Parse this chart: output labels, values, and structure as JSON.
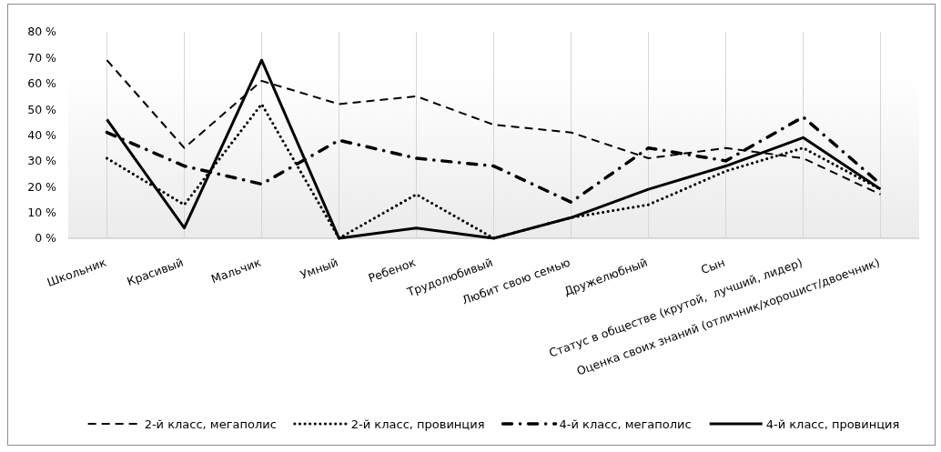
{
  "chart_data": {
    "type": "line",
    "categories": [
      "Школьник",
      "Красивый",
      "Мальчик",
      "Умный",
      "Ребенок",
      "Трудолюбивый",
      "Любит свою семью",
      "Дружелюбный",
      "Сын",
      "Статус в обществе (крутой,  лучший, лидер)",
      "Оценка своих знаний (отличник/хорошист/двоечник)"
    ],
    "series": [
      {
        "name": "2-й класс, мегаполис",
        "color": "#000000",
        "line_style": "dashed",
        "values": [
          69,
          35,
          61,
          52,
          55,
          44,
          41,
          31,
          35,
          31,
          17
        ]
      },
      {
        "name": "2-й класс, провинция",
        "color": "#000000",
        "line_style": "dotted",
        "values": [
          31,
          13,
          52,
          0,
          17,
          0,
          8,
          13,
          26,
          35,
          19
        ]
      },
      {
        "name": "4-й класс, мегаполис",
        "color": "#000000",
        "line_style": "dashdot",
        "values": [
          41,
          28,
          21,
          38,
          31,
          28,
          14,
          35,
          30,
          47,
          21
        ]
      },
      {
        "name": "4-й класс, провинция",
        "color": "#000000",
        "line_style": "solid",
        "values": [
          46,
          4,
          69,
          0,
          4,
          0,
          8,
          19,
          28,
          39,
          19
        ]
      }
    ],
    "ylim": [
      0,
      80
    ],
    "yticks": [
      {
        "value": 0,
        "label": "0 %"
      },
      {
        "value": 10,
        "label": "10 %"
      },
      {
        "value": 20,
        "label": "20 %"
      },
      {
        "value": 30,
        "label": "30 %"
      },
      {
        "value": 40,
        "label": "40 %"
      },
      {
        "value": 50,
        "label": "50 %"
      },
      {
        "value": 60,
        "label": "60 %"
      },
      {
        "value": 70,
        "label": "70 %"
      },
      {
        "value": 80,
        "label": "80 %"
      }
    ],
    "grid": "x",
    "legend": "bottom"
  }
}
